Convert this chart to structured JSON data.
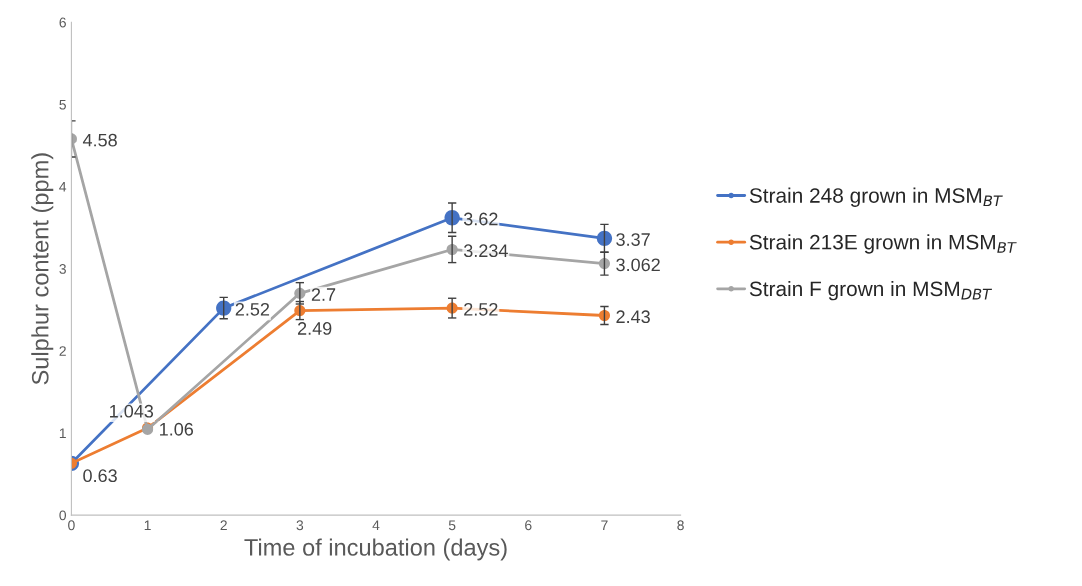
{
  "chart_data": {
    "type": "line",
    "xlabel": "Time of incubation (days)",
    "ylabel": "Sulphur content (ppm)",
    "xlim": [
      0,
      8
    ],
    "xticks": [
      0,
      1,
      2,
      3,
      4,
      5,
      6,
      7,
      8
    ],
    "ylim": [
      0,
      6
    ],
    "yticks": [
      0,
      1,
      2,
      3,
      4,
      5,
      6
    ],
    "grid": false,
    "legend": "right",
    "marker": "circle",
    "line_style": "solid",
    "series": [
      {
        "name": "Strain 248 grown in MSM$_{BT}$",
        "color": "#4472c4",
        "x": [
          0,
          2,
          5,
          7
        ],
        "values": [
          0.63,
          2.52,
          3.62,
          3.37
        ],
        "errors": [
          null,
          0.13,
          0.18,
          0.17
        ],
        "value_labels": [
          null,
          "2.52",
          "3.62",
          "3.37"
        ]
      },
      {
        "name": "Strain 213E grown in MSM$_{BT}$",
        "color": "#ed7d31",
        "x": [
          0,
          1,
          3,
          5,
          7
        ],
        "values": [
          0.63,
          1.06,
          2.49,
          2.52,
          2.43
        ],
        "errors": [
          null,
          null,
          0.11,
          0.12,
          0.11
        ],
        "value_labels": [
          "0.63",
          "1.06",
          "2.49",
          "2.52",
          "2.43"
        ]
      },
      {
        "name": "Strain F grown in MSM$_{DBT}$",
        "color": "#a5a5a5",
        "x": [
          0,
          1,
          3,
          5,
          7
        ],
        "values": [
          4.58,
          1.043,
          2.7,
          3.234,
          3.062
        ],
        "errors": [
          0.22,
          null,
          0.13,
          0.16,
          0.14
        ],
        "value_labels": [
          "4.58",
          "1.043",
          "2.7",
          "3.234",
          "3.062"
        ]
      }
    ]
  }
}
